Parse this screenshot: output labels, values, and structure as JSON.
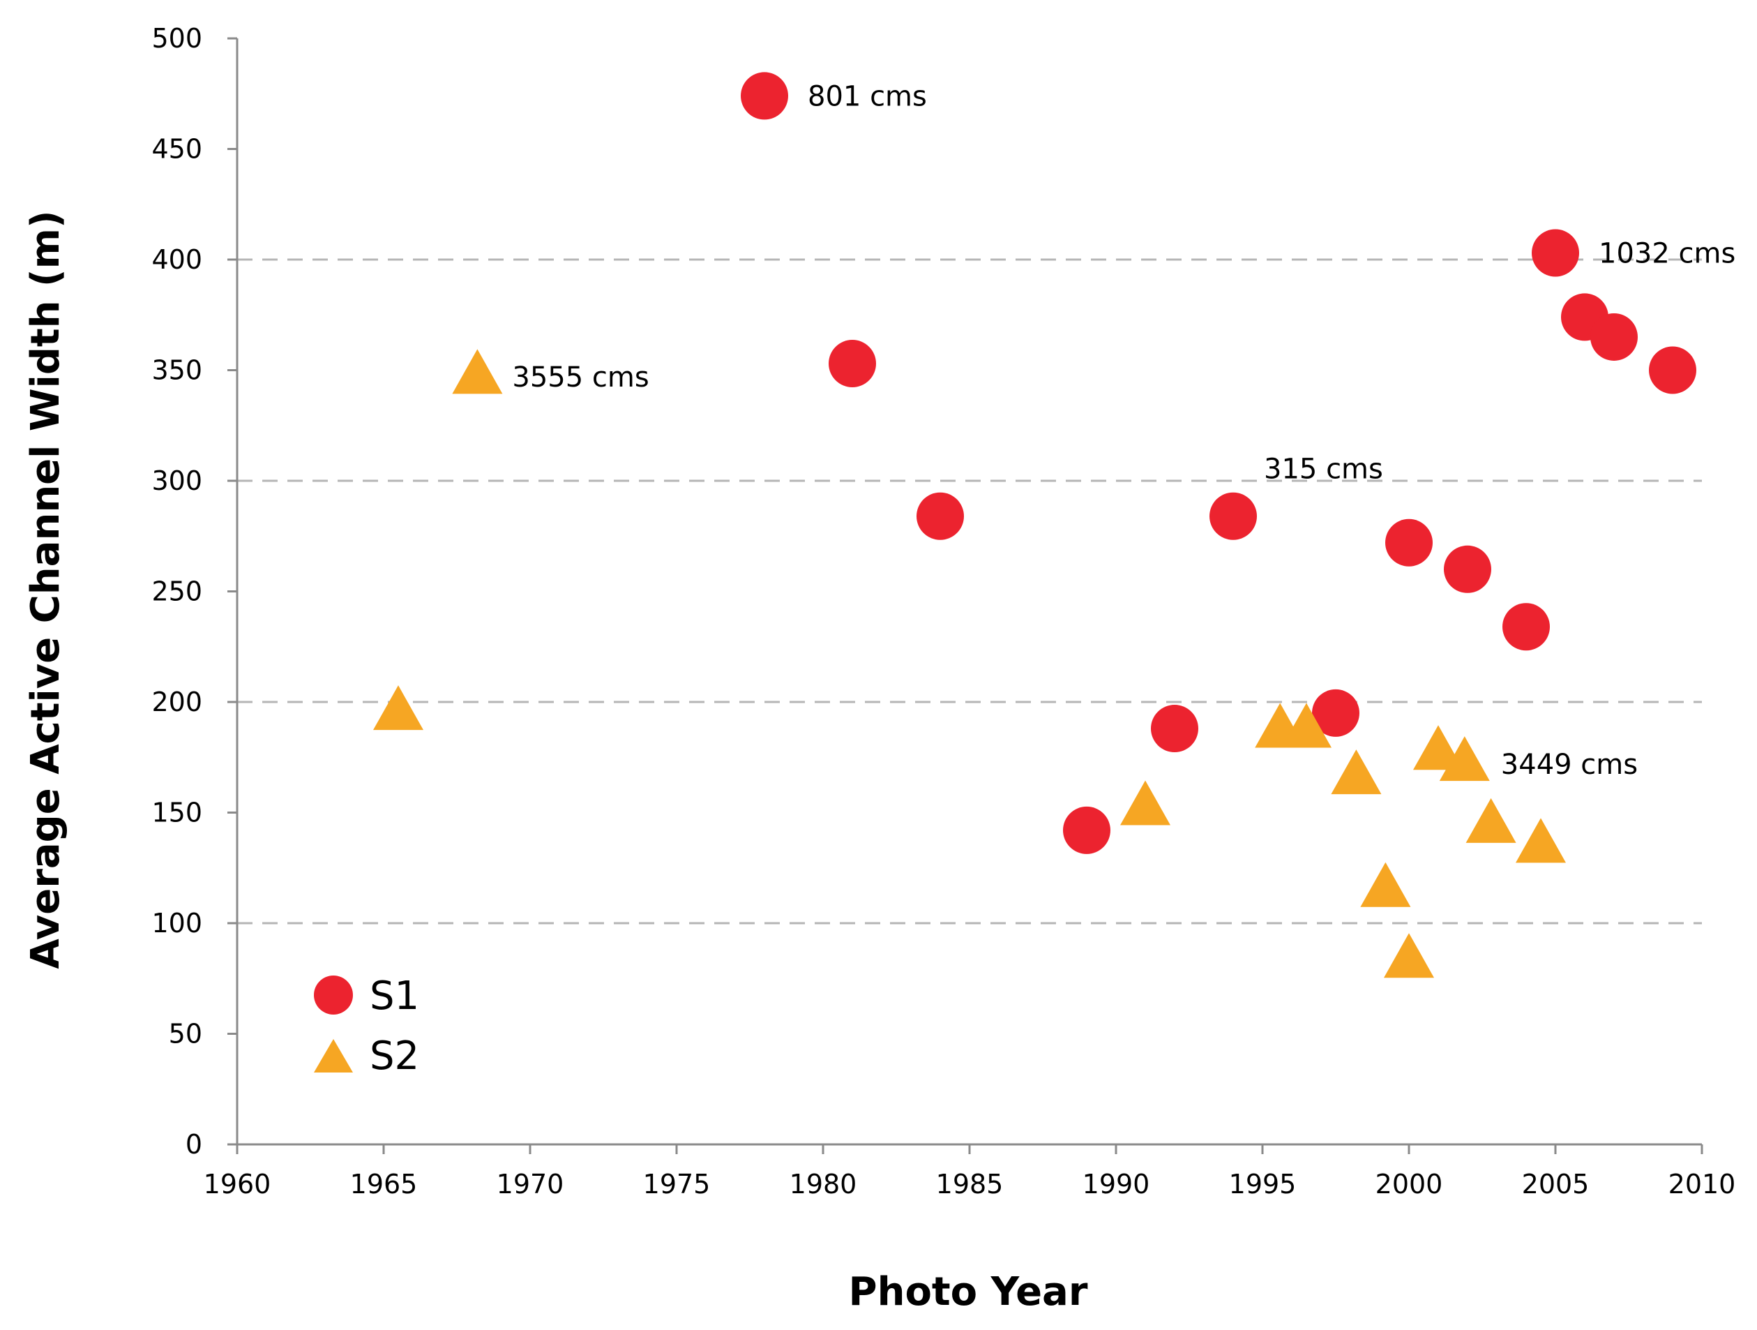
{
  "chart_data": {
    "type": "scatter",
    "title": "",
    "xlabel": "Photo Year",
    "ylabel": "Average Active Channel Width (m)",
    "xlim": [
      1960,
      2010
    ],
    "ylim": [
      0,
      500
    ],
    "xticks": [
      1960,
      1965,
      1970,
      1975,
      1980,
      1985,
      1990,
      1995,
      2000,
      2005,
      2010
    ],
    "yticks": [
      0,
      50,
      100,
      150,
      200,
      250,
      300,
      350,
      400,
      450,
      500
    ],
    "grid_y": [
      100,
      200,
      300,
      400
    ],
    "legend_position": "bottom-left",
    "colors": {
      "S1": "#ec232f",
      "S2": "#f6a623"
    },
    "series": [
      {
        "name": "S1",
        "marker": "circle",
        "points": [
          [
            1978,
            474
          ],
          [
            1981,
            353
          ],
          [
            1984,
            284
          ],
          [
            1989,
            142
          ],
          [
            1992,
            188
          ],
          [
            1994,
            284
          ],
          [
            1997.5,
            195
          ],
          [
            2000,
            272
          ],
          [
            2002,
            260
          ],
          [
            2004,
            234
          ],
          [
            2005,
            403
          ],
          [
            2006,
            374
          ],
          [
            2007,
            365
          ],
          [
            2009,
            350
          ]
        ]
      },
      {
        "name": "S2",
        "marker": "triangle",
        "points": [
          [
            1965.5,
            195
          ],
          [
            1968.2,
            347
          ],
          [
            1991,
            152
          ],
          [
            1995.6,
            187
          ],
          [
            1996.5,
            187
          ],
          [
            1998.2,
            166
          ],
          [
            1999.2,
            115
          ],
          [
            2000,
            83
          ],
          [
            2001,
            177
          ],
          [
            2001.9,
            172
          ],
          [
            2002.8,
            144
          ],
          [
            2004.5,
            135
          ]
        ]
      }
    ],
    "annotations": [
      {
        "text": "801 cms",
        "x": 1978,
        "y": 474
      },
      {
        "text": "3555 cms",
        "x": 1968.2,
        "y": 347
      },
      {
        "text": "315 cms",
        "x": 1994,
        "y": 284
      },
      {
        "text": "1032 cms",
        "x": 2005,
        "y": 403
      },
      {
        "text": "3449 cms",
        "x": 2001.9,
        "y": 172
      }
    ]
  }
}
